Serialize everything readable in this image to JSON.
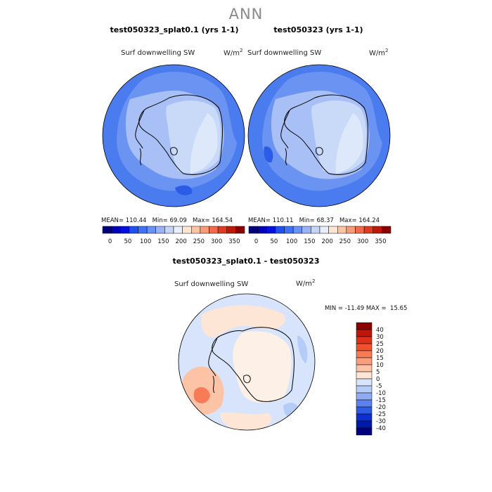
{
  "title": "ANN",
  "panels": [
    {
      "title": "test050323_splat0.1 (yrs 1-1)",
      "field": "Surf downwelling SW",
      "units_base": "W/m",
      "units_exp": "2",
      "stats": {
        "mean_label": "MEAN=",
        "mean": "110.44",
        "min_label": "Min=",
        "min": "69.09",
        "max_label": "Max=",
        "max": "164.54"
      }
    },
    {
      "title": "test050323 (yrs 1-1)",
      "field": "Surf downwelling SW",
      "units_base": "W/m",
      "units_exp": "2",
      "stats": {
        "mean_label": "MEAN=",
        "mean": "110.11",
        "min_label": "Min=",
        "min": "68.37",
        "max_label": "Max=",
        "max": "164.24"
      }
    }
  ],
  "abs_colorbar": {
    "colors": [
      "#00007f",
      "#0000b8",
      "#0010e0",
      "#1f50f0",
      "#3f72f4",
      "#6b90f6",
      "#9ab2f6",
      "#c6d4f8",
      "#eaeefc",
      "#fde7d4",
      "#fcc4a2",
      "#f79c79",
      "#f06a4b",
      "#e03a1f",
      "#bf1708",
      "#8b0000"
    ],
    "tick_labels": [
      "0",
      "50",
      "100",
      "150",
      "200",
      "250",
      "300",
      "350"
    ]
  },
  "diff_panel": {
    "title": "test050323_splat0.1 - test050323",
    "field": "Surf downwelling SW",
    "units_base": "W/m",
    "units_exp": "2",
    "stats": {
      "min_label": "MIN =",
      "min": "-11.49",
      "max_label": "MAX =",
      "max": "15.65"
    }
  },
  "diff_colorbar": {
    "colors": [
      "#8b0000",
      "#c0150a",
      "#e0301a",
      "#f2502e",
      "#f77b56",
      "#fa9e7e",
      "#fcc3a6",
      "#fde6d6",
      "#d8e4fb",
      "#b5cbf8",
      "#8fabf4",
      "#5d82f0",
      "#2f5ae6",
      "#0b2fd0",
      "#001aa8",
      "#00007f"
    ],
    "tick_labels": [
      "40",
      "30",
      "25",
      "20",
      "15",
      "10",
      "5",
      "0",
      "-5",
      "-10",
      "-15",
      "-20",
      "-25",
      "-30",
      "-40"
    ]
  }
}
